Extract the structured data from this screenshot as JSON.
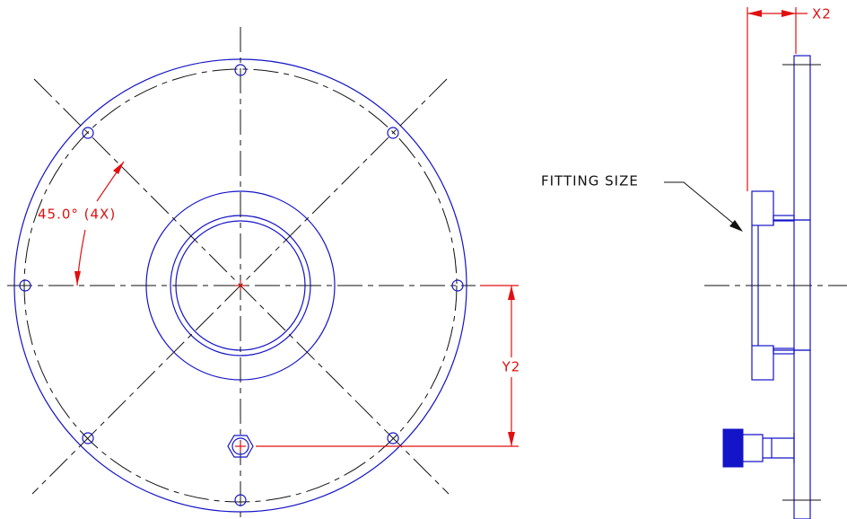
{
  "labels": {
    "angle": "45.0° (4X)",
    "y2": "Y2",
    "x2": "X2",
    "fitting": "FITTING SIZE"
  }
}
